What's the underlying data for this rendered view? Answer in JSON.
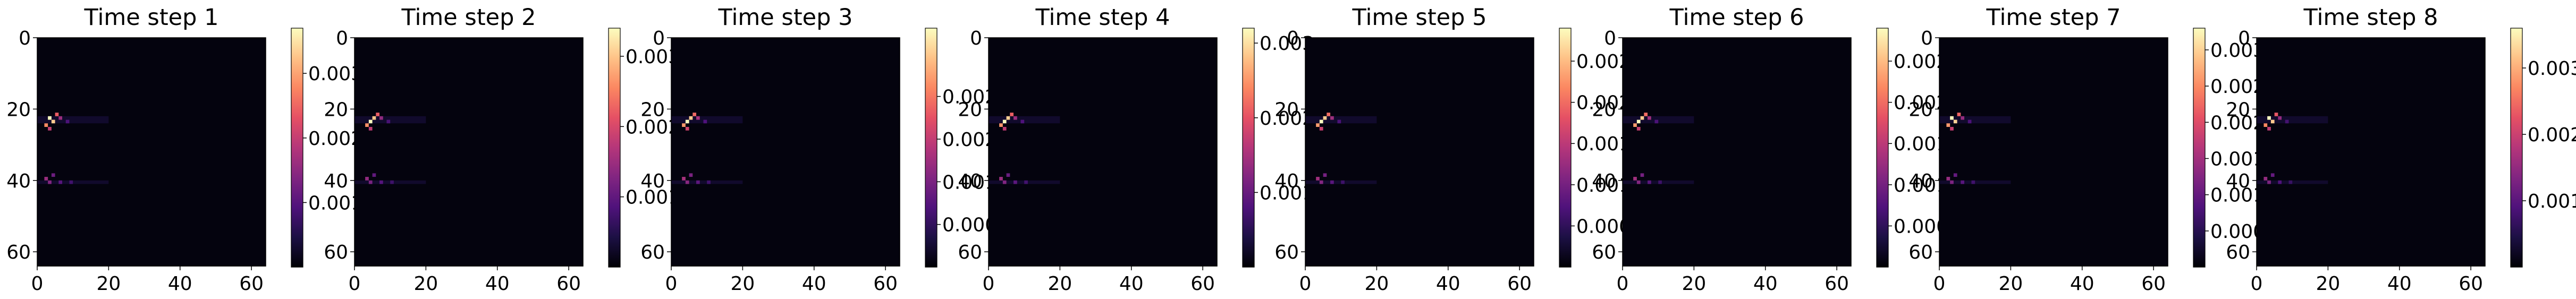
{
  "colormap": {
    "name": "magma",
    "stops": [
      "#000004",
      "#1c1044",
      "#4f127b",
      "#812581",
      "#b5367a",
      "#e55064",
      "#fb8761",
      "#fec287",
      "#fcfdbf"
    ]
  },
  "chart_data": [
    {
      "type": "heatmap",
      "title": "Time step 1",
      "x_ticks": [
        "0",
        "20",
        "40",
        "60"
      ],
      "y_ticks": [
        "0",
        "20",
        "40",
        "60"
      ],
      "x_range": [
        0,
        64
      ],
      "y_range": [
        0,
        64
      ],
      "colorbar": {
        "ticks": [
          {
            "value": 0.003,
            "label": "0.003"
          },
          {
            "value": 0.002,
            "label": "0.002"
          },
          {
            "value": 0.001,
            "label": "0.001"
          }
        ],
        "range": [
          0,
          0.0037
        ]
      },
      "hotspots": [
        {
          "x": 3,
          "y": 22,
          "value": 0.0037
        },
        {
          "x": 4,
          "y": 23,
          "value": 0.0033
        },
        {
          "x": 2,
          "y": 24,
          "value": 0.0028
        },
        {
          "x": 5,
          "y": 21,
          "value": 0.0024
        },
        {
          "x": 3,
          "y": 25,
          "value": 0.002
        },
        {
          "x": 6,
          "y": 22,
          "value": 0.0016
        },
        {
          "x": 2,
          "y": 39,
          "value": 0.0016
        },
        {
          "x": 3,
          "y": 40,
          "value": 0.0014
        },
        {
          "x": 4,
          "y": 38,
          "value": 0.0012
        },
        {
          "x": 6,
          "y": 40,
          "value": 0.001
        },
        {
          "x": 8,
          "y": 23,
          "value": 0.0009
        },
        {
          "x": 9,
          "y": 40,
          "value": 0.0008
        }
      ]
    },
    {
      "type": "heatmap",
      "title": "Time step 2",
      "x_ticks": [
        "0",
        "20",
        "40",
        "60"
      ],
      "y_ticks": [
        "0",
        "20",
        "40",
        "60"
      ],
      "x_range": [
        0,
        64
      ],
      "y_range": [
        0,
        64
      ],
      "colorbar": {
        "ticks": [
          {
            "value": 0.003,
            "label": "0.003"
          },
          {
            "value": 0.002,
            "label": "0.002"
          },
          {
            "value": 0.001,
            "label": "0.001"
          }
        ],
        "range": [
          0,
          0.0034
        ]
      },
      "hotspots": [
        {
          "x": 4,
          "y": 23,
          "value": 0.0034
        },
        {
          "x": 5,
          "y": 22,
          "value": 0.003
        },
        {
          "x": 3,
          "y": 24,
          "value": 0.0026
        },
        {
          "x": 6,
          "y": 21,
          "value": 0.0022
        },
        {
          "x": 4,
          "y": 25,
          "value": 0.0018
        },
        {
          "x": 7,
          "y": 22,
          "value": 0.0014
        },
        {
          "x": 3,
          "y": 39,
          "value": 0.0014
        },
        {
          "x": 4,
          "y": 40,
          "value": 0.0012
        },
        {
          "x": 5,
          "y": 38,
          "value": 0.001
        },
        {
          "x": 7,
          "y": 40,
          "value": 0.0009
        },
        {
          "x": 9,
          "y": 23,
          "value": 0.0008
        },
        {
          "x": 10,
          "y": 40,
          "value": 0.0007
        }
      ]
    },
    {
      "type": "heatmap",
      "title": "Time step 3",
      "x_ticks": [
        "0",
        "20",
        "40",
        "60"
      ],
      "y_ticks": [
        "0",
        "20",
        "40",
        "60"
      ],
      "x_range": [
        0,
        64
      ],
      "y_range": [
        0,
        64
      ],
      "colorbar": {
        "ticks": [
          {
            "value": 0.002,
            "label": "0.002"
          },
          {
            "value": 0.0015,
            "label": "0.002"
          },
          {
            "value": 0.001,
            "label": "0.001"
          },
          {
            "value": 0.0005,
            "label": "0.000"
          }
        ],
        "range": [
          0,
          0.0028
        ]
      },
      "hotspots": [
        {
          "x": 4,
          "y": 23,
          "value": 0.0028
        },
        {
          "x": 5,
          "y": 22,
          "value": 0.0025
        },
        {
          "x": 3,
          "y": 24,
          "value": 0.0022
        },
        {
          "x": 6,
          "y": 21,
          "value": 0.0019
        },
        {
          "x": 4,
          "y": 25,
          "value": 0.0016
        },
        {
          "x": 7,
          "y": 22,
          "value": 0.0013
        },
        {
          "x": 3,
          "y": 39,
          "value": 0.0013
        },
        {
          "x": 4,
          "y": 40,
          "value": 0.0011
        },
        {
          "x": 5,
          "y": 38,
          "value": 0.001
        },
        {
          "x": 7,
          "y": 40,
          "value": 0.0008
        },
        {
          "x": 9,
          "y": 23,
          "value": 0.0007
        },
        {
          "x": 10,
          "y": 40,
          "value": 0.0006
        }
      ]
    },
    {
      "type": "heatmap",
      "title": "Time step 4",
      "x_ticks": [
        "0",
        "20",
        "40",
        "60"
      ],
      "y_ticks": [
        "0",
        "20",
        "40",
        "60"
      ],
      "x_range": [
        0,
        64
      ],
      "y_range": [
        0,
        64
      ],
      "colorbar": {
        "ticks": [
          {
            "value": 0.003,
            "label": "0.003"
          },
          {
            "value": 0.002,
            "label": "0.002"
          },
          {
            "value": 0.001,
            "label": "0.001"
          }
        ],
        "range": [
          0,
          0.0032
        ]
      },
      "hotspots": [
        {
          "x": 4,
          "y": 23,
          "value": 0.0032
        },
        {
          "x": 5,
          "y": 22,
          "value": 0.0029
        },
        {
          "x": 3,
          "y": 24,
          "value": 0.0025
        },
        {
          "x": 6,
          "y": 21,
          "value": 0.0021
        },
        {
          "x": 4,
          "y": 25,
          "value": 0.0017
        },
        {
          "x": 7,
          "y": 22,
          "value": 0.0014
        },
        {
          "x": 3,
          "y": 39,
          "value": 0.0014
        },
        {
          "x": 4,
          "y": 40,
          "value": 0.0012
        },
        {
          "x": 5,
          "y": 38,
          "value": 0.001
        },
        {
          "x": 7,
          "y": 40,
          "value": 0.0009
        },
        {
          "x": 9,
          "y": 23,
          "value": 0.0008
        },
        {
          "x": 10,
          "y": 40,
          "value": 0.0007
        }
      ]
    },
    {
      "type": "heatmap",
      "title": "Time step 5",
      "x_ticks": [
        "0",
        "20",
        "40",
        "60"
      ],
      "y_ticks": [
        "0",
        "20",
        "40",
        "60"
      ],
      "x_range": [
        0,
        64
      ],
      "y_range": [
        0,
        64
      ],
      "colorbar": {
        "ticks": [
          {
            "value": 0.0025,
            "label": "0.002"
          },
          {
            "value": 0.002,
            "label": "0.002"
          },
          {
            "value": 0.0015,
            "label": "0.001"
          },
          {
            "value": 0.001,
            "label": "0.001"
          },
          {
            "value": 0.0005,
            "label": "0.000"
          }
        ],
        "range": [
          0,
          0.0029
        ]
      },
      "hotspots": [
        {
          "x": 4,
          "y": 23,
          "value": 0.0029
        },
        {
          "x": 5,
          "y": 22,
          "value": 0.0026
        },
        {
          "x": 3,
          "y": 24,
          "value": 0.0023
        },
        {
          "x": 6,
          "y": 21,
          "value": 0.002
        },
        {
          "x": 4,
          "y": 25,
          "value": 0.0016
        },
        {
          "x": 7,
          "y": 22,
          "value": 0.0013
        },
        {
          "x": 3,
          "y": 39,
          "value": 0.0013
        },
        {
          "x": 4,
          "y": 40,
          "value": 0.0011
        },
        {
          "x": 5,
          "y": 38,
          "value": 0.001
        },
        {
          "x": 7,
          "y": 40,
          "value": 0.0008
        },
        {
          "x": 9,
          "y": 23,
          "value": 0.0007
        },
        {
          "x": 10,
          "y": 40,
          "value": 0.0006
        }
      ]
    },
    {
      "type": "heatmap",
      "title": "Time step 6",
      "x_ticks": [
        "0",
        "20",
        "40",
        "60"
      ],
      "y_ticks": [
        "0",
        "20",
        "40",
        "60"
      ],
      "x_range": [
        0,
        64
      ],
      "y_range": [
        0,
        64
      ],
      "colorbar": {
        "ticks": [
          {
            "value": 0.0025,
            "label": "0.002"
          },
          {
            "value": 0.002,
            "label": "0.002"
          },
          {
            "value": 0.0015,
            "label": "0.001"
          },
          {
            "value": 0.001,
            "label": "0.001"
          },
          {
            "value": 0.0005,
            "label": "0.000"
          }
        ],
        "range": [
          0,
          0.0029
        ]
      },
      "hotspots": [
        {
          "x": 4,
          "y": 23,
          "value": 0.0029
        },
        {
          "x": 5,
          "y": 22,
          "value": 0.0026
        },
        {
          "x": 3,
          "y": 24,
          "value": 0.0023
        },
        {
          "x": 6,
          "y": 21,
          "value": 0.002
        },
        {
          "x": 4,
          "y": 25,
          "value": 0.0016
        },
        {
          "x": 7,
          "y": 22,
          "value": 0.0013
        },
        {
          "x": 3,
          "y": 39,
          "value": 0.0013
        },
        {
          "x": 4,
          "y": 40,
          "value": 0.0011
        },
        {
          "x": 5,
          "y": 38,
          "value": 0.001
        },
        {
          "x": 7,
          "y": 40,
          "value": 0.0008
        },
        {
          "x": 9,
          "y": 23,
          "value": 0.0007
        },
        {
          "x": 10,
          "y": 40,
          "value": 0.0006
        }
      ]
    },
    {
      "type": "heatmap",
      "title": "Time step 7",
      "x_ticks": [
        "0",
        "20",
        "40",
        "60"
      ],
      "y_ticks": [
        "0",
        "20",
        "40",
        "60"
      ],
      "x_range": [
        0,
        64
      ],
      "y_range": [
        0,
        64
      ],
      "colorbar": {
        "ticks": [
          {
            "value": 0.003,
            "label": "0.003"
          },
          {
            "value": 0.0025,
            "label": "0.002"
          },
          {
            "value": 0.002,
            "label": "0.002"
          },
          {
            "value": 0.0015,
            "label": "0.001"
          },
          {
            "value": 0.001,
            "label": "0.001"
          },
          {
            "value": 0.0005,
            "label": "0.000"
          }
        ],
        "range": [
          0,
          0.0033
        ]
      },
      "hotspots": [
        {
          "x": 3,
          "y": 22,
          "value": 0.0033
        },
        {
          "x": 4,
          "y": 23,
          "value": 0.003
        },
        {
          "x": 2,
          "y": 24,
          "value": 0.0026
        },
        {
          "x": 5,
          "y": 21,
          "value": 0.0022
        },
        {
          "x": 3,
          "y": 25,
          "value": 0.0018
        },
        {
          "x": 6,
          "y": 22,
          "value": 0.0014
        },
        {
          "x": 2,
          "y": 39,
          "value": 0.0014
        },
        {
          "x": 3,
          "y": 40,
          "value": 0.0012
        },
        {
          "x": 4,
          "y": 38,
          "value": 0.001
        },
        {
          "x": 6,
          "y": 40,
          "value": 0.0009
        },
        {
          "x": 8,
          "y": 23,
          "value": 0.0008
        },
        {
          "x": 9,
          "y": 40,
          "value": 0.0007
        }
      ]
    },
    {
      "type": "heatmap",
      "title": "Time step 8",
      "x_ticks": [
        "0",
        "20",
        "40",
        "60"
      ],
      "y_ticks": [
        "0",
        "20",
        "40",
        "60"
      ],
      "x_range": [
        0,
        64
      ],
      "y_range": [
        0,
        64
      ],
      "colorbar": {
        "ticks": [
          {
            "value": 0.003,
            "label": "0.003"
          },
          {
            "value": 0.002,
            "label": "0.002"
          },
          {
            "value": 0.001,
            "label": "0.001"
          }
        ],
        "range": [
          0,
          0.0036
        ]
      },
      "hotspots": [
        {
          "x": 3,
          "y": 22,
          "value": 0.0036
        },
        {
          "x": 4,
          "y": 23,
          "value": 0.0032
        },
        {
          "x": 2,
          "y": 24,
          "value": 0.0027
        },
        {
          "x": 5,
          "y": 21,
          "value": 0.0023
        },
        {
          "x": 3,
          "y": 25,
          "value": 0.0019
        },
        {
          "x": 6,
          "y": 22,
          "value": 0.0015
        },
        {
          "x": 2,
          "y": 39,
          "value": 0.0015
        },
        {
          "x": 3,
          "y": 40,
          "value": 0.0013
        },
        {
          "x": 4,
          "y": 38,
          "value": 0.0011
        },
        {
          "x": 6,
          "y": 40,
          "value": 0.0009
        },
        {
          "x": 8,
          "y": 23,
          "value": 0.0008
        },
        {
          "x": 9,
          "y": 40,
          "value": 0.0007
        }
      ]
    }
  ]
}
